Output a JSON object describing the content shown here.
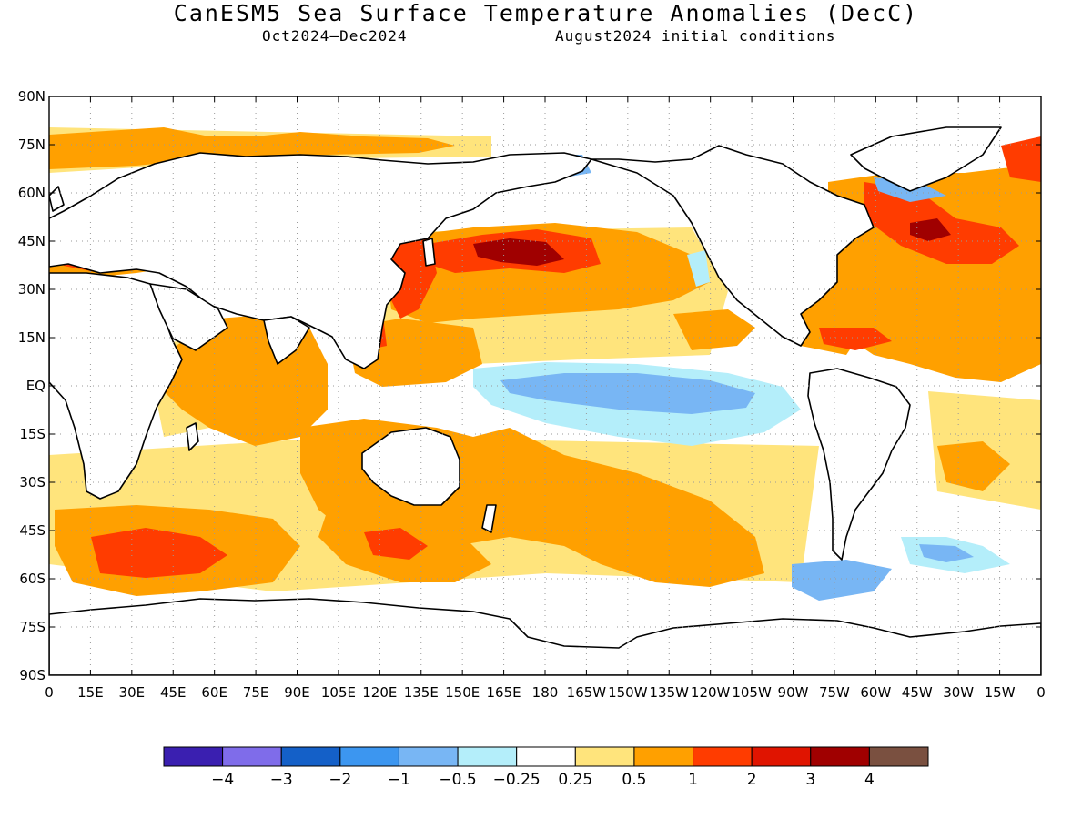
{
  "title": "CanESM5 Sea Surface Temperature Anomalies (DecC)",
  "subtitle_left": "Oct2024–Dec2024",
  "subtitle_right": "August2024 initial conditions",
  "map": {
    "lat_labels": [
      "90N",
      "75N",
      "60N",
      "45N",
      "30N",
      "15N",
      "EQ",
      "15S",
      "30S",
      "45S",
      "60S",
      "75S",
      "90S"
    ],
    "lon_labels": [
      "0",
      "15E",
      "30E",
      "45E",
      "60E",
      "75E",
      "90E",
      "105E",
      "120E",
      "135E",
      "150E",
      "165E",
      "180",
      "165W",
      "150W",
      "135W",
      "120W",
      "105W",
      "90W",
      "75W",
      "60W",
      "45W",
      "30W",
      "15W",
      "0"
    ],
    "grid": "dotted"
  },
  "colorbar": {
    "colors": [
      "#3a1fb0",
      "#7f6cea",
      "#1460c8",
      "#3c96f0",
      "#78b6f4",
      "#b4eefa",
      "#ffffff",
      "#ffe47c",
      "#ffa000",
      "#ff3c00",
      "#e01400",
      "#a00000",
      "#7a5040"
    ],
    "labels": [
      "-4",
      "-3",
      "-2",
      "-1",
      "-0.5",
      "-0.25",
      "0.25",
      "0.5",
      "1",
      "2",
      "3",
      "4"
    ]
  },
  "colors": {
    "land": "#ffffff",
    "coast": "#000000",
    "neutral_ocean": "#ffffff",
    "warm_weak": "#ffe47c",
    "warm_moderate": "#ffa000",
    "warm_strong": "#ff3c00",
    "warm_extreme": "#a00000",
    "cool_weak": "#b4eefa",
    "cool_moderate": "#78b6f4"
  }
}
